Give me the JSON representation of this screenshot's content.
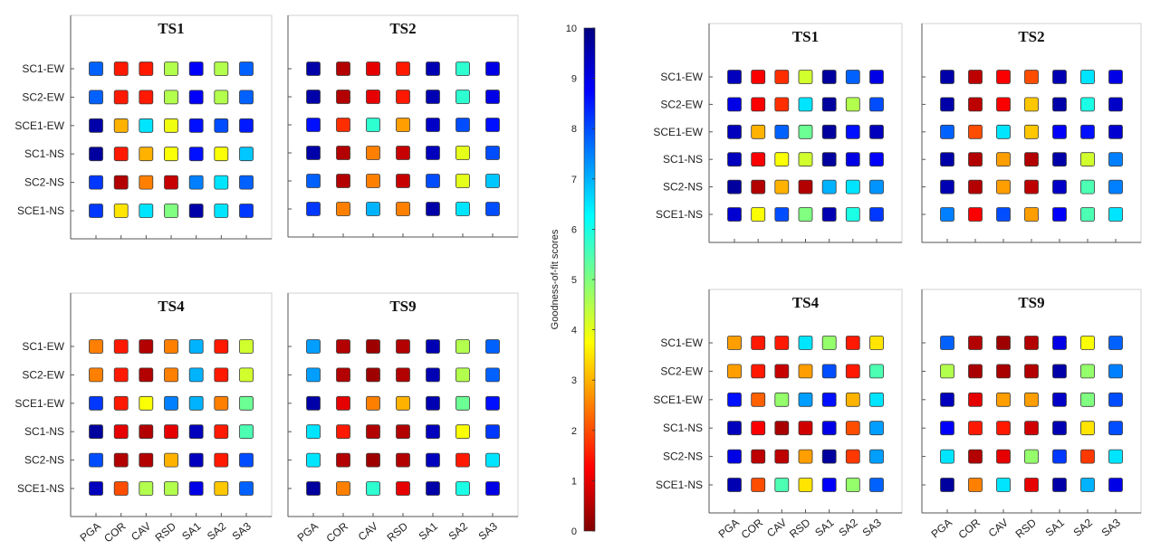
{
  "figure": {
    "colorbar": {
      "label": "Goodness-of-fit scores",
      "min": 0,
      "max": 10,
      "ticks": [
        "0",
        "1",
        "2",
        "3",
        "4",
        "5",
        "6",
        "7",
        "8",
        "9",
        "10"
      ]
    },
    "colormap_note": "jet (0 = dark red, 10 = dark blue)"
  },
  "chart_data": [
    {
      "type": "heatmap",
      "title": "TS1",
      "group": "left",
      "rows": [
        "SC1-EW",
        "SC2-EW",
        "SCE1-EW",
        "SC1-NS",
        "SC2-NS",
        "SCE1-NS"
      ],
      "columns": [
        "PGA",
        "COR",
        "CAV",
        "RSD",
        "SA1",
        "SA2",
        "SA3"
      ],
      "values": [
        [
          7.8,
          1.5,
          1.5,
          4.5,
          8.8,
          4.5,
          7.8
        ],
        [
          7.8,
          1.5,
          1.5,
          4.5,
          8.8,
          4.5,
          7.8
        ],
        [
          9.6,
          3.0,
          6.5,
          3.9,
          8.6,
          8.0,
          8.5
        ],
        [
          9.7,
          1.5,
          3.0,
          3.8,
          8.6,
          3.8,
          6.8
        ],
        [
          8.2,
          0.5,
          2.5,
          0.7,
          7.5,
          6.5,
          7.8
        ],
        [
          8.2,
          3.5,
          6.5,
          5.0,
          9.6,
          6.5,
          8.2
        ]
      ]
    },
    {
      "type": "heatmap",
      "title": "TS2",
      "group": "left",
      "rows": [
        "SC1-EW",
        "SC2-EW",
        "SCE1-EW",
        "SC1-NS",
        "SC2-NS",
        "SCE1-NS"
      ],
      "columns": [
        "PGA",
        "COR",
        "CAV",
        "RSD",
        "SA1",
        "SA2",
        "SA3"
      ],
      "values": [
        [
          9.6,
          0.5,
          1.0,
          1.5,
          9.5,
          5.8,
          9.0
        ],
        [
          9.6,
          0.5,
          1.0,
          1.5,
          9.5,
          5.8,
          9.0
        ],
        [
          8.6,
          1.7,
          5.8,
          2.8,
          9.3,
          8.0,
          8.6
        ],
        [
          9.6,
          0.5,
          2.5,
          0.7,
          9.4,
          4.0,
          8.0
        ],
        [
          7.8,
          0.5,
          2.5,
          0.7,
          8.0,
          4.0,
          6.8
        ],
        [
          8.2,
          2.5,
          7.0,
          2.5,
          9.6,
          6.5,
          8.0
        ]
      ]
    },
    {
      "type": "heatmap",
      "title": "TS4",
      "group": "left",
      "rows": [
        "SC1-EW",
        "SC2-EW",
        "SCE1-EW",
        "SC1-NS",
        "SC2-NS",
        "SCE1-NS"
      ],
      "columns": [
        "PGA",
        "COR",
        "CAV",
        "RSD",
        "SA1",
        "SA2",
        "SA3"
      ],
      "values": [
        [
          2.5,
          1.5,
          0.5,
          2.5,
          7.0,
          1.5,
          4.2
        ],
        [
          2.5,
          1.5,
          0.5,
          2.5,
          7.0,
          1.5,
          4.2
        ],
        [
          8.2,
          1.5,
          3.8,
          7.5,
          7.0,
          2.5,
          5.2
        ],
        [
          9.7,
          1.0,
          0.5,
          1.0,
          9.4,
          1.5,
          5.5
        ],
        [
          8.0,
          0.5,
          0.5,
          3.0,
          9.4,
          1.5,
          8.0
        ],
        [
          9.4,
          2.0,
          4.5,
          4.5,
          9.0,
          3.2,
          7.8
        ]
      ]
    },
    {
      "type": "heatmap",
      "title": "TS9",
      "group": "left",
      "rows": [
        "SC1-EW",
        "SC2-EW",
        "SCE1-EW",
        "SC1-NS",
        "SC2-NS",
        "SCE1-NS"
      ],
      "columns": [
        "PGA",
        "COR",
        "CAV",
        "RSD",
        "SA1",
        "SA2",
        "SA3"
      ],
      "values": [
        [
          7.2,
          0.5,
          0.3,
          0.5,
          9.5,
          4.5,
          7.8
        ],
        [
          7.2,
          0.5,
          0.3,
          0.5,
          9.5,
          4.5,
          7.8
        ],
        [
          9.6,
          1.0,
          2.5,
          3.0,
          9.5,
          5.2,
          8.6
        ],
        [
          6.5,
          1.5,
          0.5,
          0.5,
          9.4,
          3.8,
          8.2
        ],
        [
          6.5,
          0.5,
          0.3,
          0.5,
          9.4,
          1.5,
          6.5
        ],
        [
          9.7,
          2.5,
          5.8,
          1.0,
          9.6,
          6.0,
          9.0
        ]
      ]
    },
    {
      "type": "heatmap",
      "title": "TS1",
      "group": "right",
      "rows": [
        "SC1-EW",
        "SC2-EW",
        "SCE1-EW",
        "SC1-NS",
        "SC2-NS",
        "SCE1-NS"
      ],
      "columns": [
        "PGA",
        "COR",
        "CAV",
        "RSD",
        "SA1",
        "SA2",
        "SA3"
      ],
      "values": [
        [
          9.4,
          1.2,
          1.7,
          4.2,
          9.7,
          7.8,
          9.0
        ],
        [
          9.0,
          1.2,
          1.7,
          6.5,
          9.7,
          4.5,
          8.0
        ],
        [
          9.4,
          3.0,
          7.8,
          5.2,
          9.7,
          8.6,
          9.4
        ],
        [
          9.4,
          1.2,
          3.8,
          4.2,
          9.7,
          9.0,
          8.8
        ],
        [
          9.7,
          0.5,
          3.0,
          0.5,
          7.0,
          6.5,
          7.3
        ],
        [
          9.2,
          3.8,
          8.0,
          5.0,
          9.5,
          6.0,
          8.2
        ]
      ]
    },
    {
      "type": "heatmap",
      "title": "TS2",
      "group": "right",
      "rows": [
        "SC1-EW",
        "SC2-EW",
        "SCE1-EW",
        "SC1-NS",
        "SC2-NS",
        "SCE1-NS"
      ],
      "columns": [
        "PGA",
        "COR",
        "CAV",
        "RSD",
        "SA1",
        "SA2",
        "SA3"
      ],
      "values": [
        [
          9.6,
          0.6,
          1.2,
          2.0,
          9.5,
          6.5,
          9.0
        ],
        [
          9.6,
          0.6,
          1.2,
          3.2,
          9.6,
          6.0,
          9.3
        ],
        [
          7.8,
          2.0,
          6.5,
          3.2,
          8.8,
          8.6,
          9.2
        ],
        [
          9.6,
          0.5,
          2.8,
          0.5,
          9.6,
          4.2,
          7.5
        ],
        [
          9.5,
          0.5,
          2.8,
          0.6,
          9.3,
          5.5,
          7.5
        ],
        [
          7.5,
          1.2,
          8.0,
          2.8,
          8.8,
          5.5,
          6.5
        ]
      ]
    },
    {
      "type": "heatmap",
      "title": "TS4",
      "group": "right",
      "rows": [
        "SC1-EW",
        "SC2-EW",
        "SCE1-EW",
        "SC1-NS",
        "SC2-NS",
        "SCE1-NS"
      ],
      "columns": [
        "PGA",
        "COR",
        "CAV",
        "RSD",
        "SA1",
        "SA2",
        "SA3"
      ],
      "values": [
        [
          2.8,
          1.5,
          1.5,
          6.5,
          4.8,
          1.5,
          3.5
        ],
        [
          2.8,
          1.5,
          0.7,
          2.8,
          8.0,
          1.5,
          5.5
        ],
        [
          8.6,
          2.2,
          4.8,
          7.2,
          8.6,
          3.0,
          6.5
        ],
        [
          9.4,
          1.2,
          0.4,
          0.8,
          9.0,
          2.0,
          7.2
        ],
        [
          9.0,
          0.6,
          0.6,
          2.8,
          9.7,
          1.8,
          7.2
        ],
        [
          9.5,
          2.0,
          5.5,
          3.5,
          8.8,
          4.8,
          7.8
        ]
      ]
    },
    {
      "type": "heatmap",
      "title": "TS9",
      "group": "right",
      "rows": [
        "SC1-EW",
        "SC2-EW",
        "SCE1-EW",
        "SC1-NS",
        "SC2-NS",
        "SCE1-NS"
      ],
      "columns": [
        "PGA",
        "COR",
        "CAV",
        "RSD",
        "SA1",
        "SA2",
        "SA3"
      ],
      "values": [
        [
          7.8,
          0.5,
          0.3,
          0.5,
          9.0,
          3.8,
          7.8
        ],
        [
          4.5,
          0.4,
          0.4,
          0.5,
          9.6,
          4.8,
          7.5
        ],
        [
          9.4,
          1.0,
          2.8,
          2.8,
          9.3,
          5.0,
          8.0
        ],
        [
          8.8,
          1.5,
          1.5,
          0.8,
          9.5,
          3.5,
          8.0
        ],
        [
          6.5,
          0.5,
          1.0,
          4.8,
          8.2,
          1.8,
          6.5
        ],
        [
          9.7,
          2.5,
          6.5,
          1.0,
          9.6,
          7.0,
          9.0
        ]
      ]
    }
  ]
}
